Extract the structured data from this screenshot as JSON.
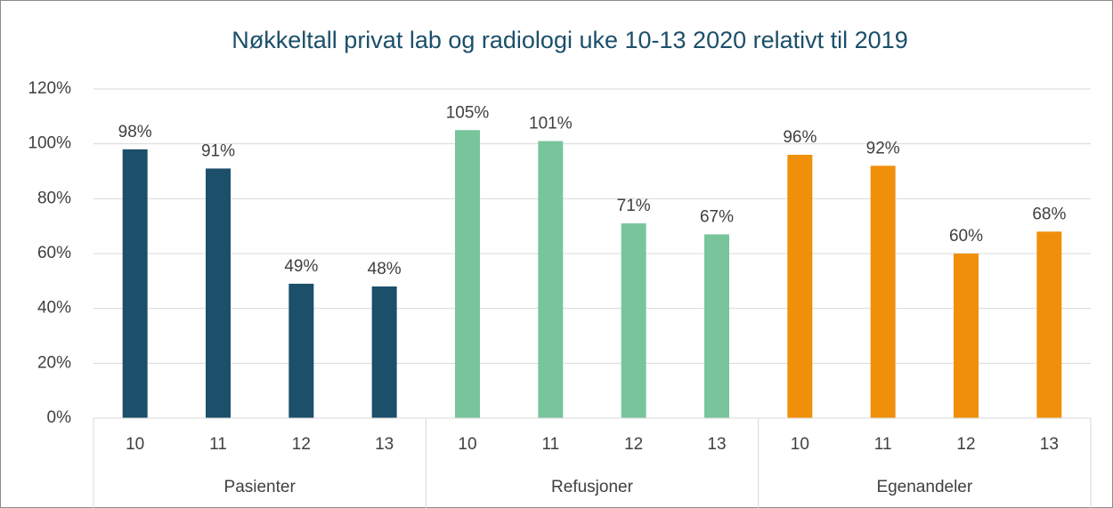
{
  "chart_data": {
    "type": "bar",
    "title": "Nøkkeltall privat lab og radiologi uke 10-13 2020 relativt til 2019",
    "groups": [
      {
        "name": "Pasienter",
        "color": "#1b4f6a",
        "categories": [
          "10",
          "11",
          "12",
          "13"
        ],
        "values": [
          98,
          91,
          49,
          48
        ],
        "value_labels": [
          "98%",
          "91%",
          "49%",
          "48%"
        ]
      },
      {
        "name": "Refusjoner",
        "color": "#78c59c",
        "categories": [
          "10",
          "11",
          "12",
          "13"
        ],
        "values": [
          105,
          101,
          71,
          67
        ],
        "value_labels": [
          "105%",
          "101%",
          "71%",
          "67%"
        ]
      },
      {
        "name": "Egenandeler",
        "color": "#f0900a",
        "categories": [
          "10",
          "11",
          "12",
          "13"
        ],
        "values": [
          96,
          92,
          60,
          68
        ],
        "value_labels": [
          "96%",
          "92%",
          "60%",
          "68%"
        ]
      }
    ],
    "ylim": [
      0,
      120
    ],
    "yticks": [
      {
        "value": 0,
        "label": "0%"
      },
      {
        "value": 20,
        "label": "20%"
      },
      {
        "value": 40,
        "label": "40%"
      },
      {
        "value": 60,
        "label": "60%"
      },
      {
        "value": 80,
        "label": "80%"
      },
      {
        "value": 100,
        "label": "100%"
      },
      {
        "value": 120,
        "label": "120%"
      }
    ],
    "grid": true
  }
}
